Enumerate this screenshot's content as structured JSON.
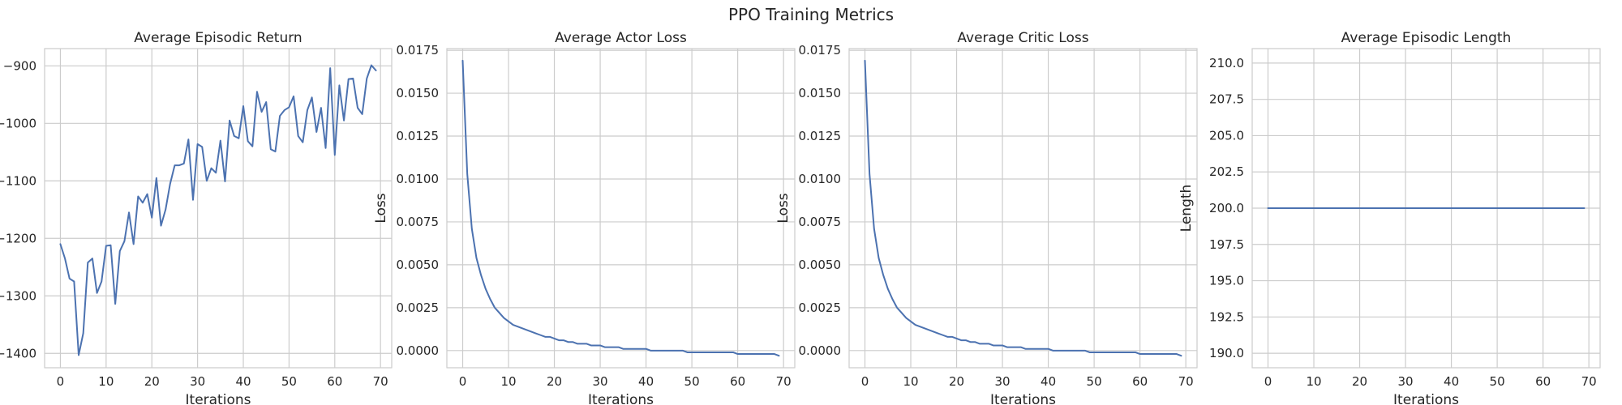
{
  "figure": {
    "suptitle": "PPO Training Metrics",
    "line_color": "#4c72b0",
    "grid_color": "#cccccc",
    "text_color": "#262626"
  },
  "chart_data": [
    {
      "type": "line",
      "title": "Average Episodic Return",
      "xlabel": "Iterations",
      "ylabel": "",
      "xlim": [
        -3.45,
        72.45
      ],
      "ylim": [
        -1425,
        -870
      ],
      "xticks": [
        0,
        10,
        20,
        30,
        40,
        50,
        60,
        70
      ],
      "yticks": [
        -1400,
        -1300,
        -1200,
        -1100,
        -1000,
        -900
      ],
      "grid": true,
      "x": [
        0,
        1,
        2,
        3,
        4,
        5,
        6,
        7,
        8,
        9,
        10,
        11,
        12,
        13,
        14,
        15,
        16,
        17,
        18,
        19,
        20,
        21,
        22,
        23,
        24,
        25,
        26,
        27,
        28,
        29,
        30,
        31,
        32,
        33,
        34,
        35,
        36,
        37,
        38,
        39,
        40,
        41,
        42,
        43,
        44,
        45,
        46,
        47,
        48,
        49,
        50,
        51,
        52,
        53,
        54,
        55,
        56,
        57,
        58,
        59,
        60,
        61,
        62,
        63,
        64,
        65,
        66,
        67,
        68,
        69
      ],
      "series": [
        {
          "values": [
            -1210,
            -1235,
            -1270,
            -1275,
            -1403,
            -1365,
            -1242,
            -1235,
            -1295,
            -1275,
            -1213,
            -1212,
            -1314,
            -1222,
            -1205,
            -1155,
            -1210,
            -1127,
            -1138,
            -1123,
            -1164,
            -1095,
            -1178,
            -1150,
            -1105,
            -1073,
            -1073,
            -1070,
            -1028,
            -1133,
            -1036,
            -1041,
            -1100,
            -1078,
            -1086,
            -1030,
            -1101,
            -995,
            -1022,
            -1026,
            -970,
            -1031,
            -1040,
            -945,
            -980,
            -963,
            -1045,
            -1049,
            -987,
            -977,
            -972,
            -953,
            -1022,
            -1033,
            -977,
            -955,
            -1015,
            -973,
            -1043,
            -904,
            -1055,
            -934,
            -995,
            -923,
            -922,
            -973,
            -984,
            -922,
            -899,
            -908
          ]
        }
      ]
    },
    {
      "type": "line",
      "title": "Average Actor Loss",
      "xlabel": "Iterations",
      "ylabel": "Loss",
      "xlim": [
        -3.45,
        72.45
      ],
      "ylim": [
        -0.001,
        0.0176
      ],
      "xticks": [
        0,
        10,
        20,
        30,
        40,
        50,
        60,
        70
      ],
      "yticks": [
        0.0,
        0.0025,
        0.005,
        0.0075,
        0.01,
        0.0125,
        0.015,
        0.0175
      ],
      "grid": true,
      "x": [
        0,
        1,
        2,
        3,
        4,
        5,
        6,
        7,
        8,
        9,
        10,
        11,
        12,
        13,
        14,
        15,
        16,
        17,
        18,
        19,
        20,
        21,
        22,
        23,
        24,
        25,
        26,
        27,
        28,
        29,
        30,
        31,
        32,
        33,
        34,
        35,
        36,
        37,
        38,
        39,
        40,
        41,
        42,
        43,
        44,
        45,
        46,
        47,
        48,
        49,
        50,
        51,
        52,
        53,
        54,
        55,
        56,
        57,
        58,
        59,
        60,
        61,
        62,
        63,
        64,
        65,
        66,
        67,
        68,
        69
      ],
      "series": [
        {
          "values": [
            0.0169,
            0.0103,
            0.0071,
            0.0054,
            0.0044,
            0.0036,
            0.003,
            0.0025,
            0.0022,
            0.0019,
            0.0017,
            0.0015,
            0.0014,
            0.0013,
            0.0012,
            0.0011,
            0.001,
            0.0009,
            0.0008,
            0.0008,
            0.0007,
            0.0006,
            0.0006,
            0.0005,
            0.0005,
            0.0004,
            0.0004,
            0.0004,
            0.0003,
            0.0003,
            0.0003,
            0.0002,
            0.0002,
            0.0002,
            0.0002,
            0.0001,
            0.0001,
            0.0001,
            0.0001,
            0.0001,
            0.0001,
            0.0,
            0.0,
            0.0,
            0.0,
            0.0,
            -0.0,
            -0.0,
            -0.0,
            -0.0001,
            -0.0001,
            -0.0001,
            -0.0001,
            -0.0001,
            -0.0001,
            -0.0001,
            -0.0001,
            -0.0001,
            -0.0001,
            -0.0001,
            -0.0002,
            -0.0002,
            -0.0002,
            -0.0002,
            -0.0002,
            -0.0002,
            -0.0002,
            -0.0002,
            -0.0002,
            -0.0003
          ]
        }
      ]
    },
    {
      "type": "line",
      "title": "Average Critic Loss",
      "xlabel": "Iterations",
      "ylabel": "Loss",
      "xlim": [
        -3.45,
        72.45
      ],
      "ylim": [
        -0.001,
        0.0176
      ],
      "xticks": [
        0,
        10,
        20,
        30,
        40,
        50,
        60,
        70
      ],
      "yticks": [
        0.0,
        0.0025,
        0.005,
        0.0075,
        0.01,
        0.0125,
        0.015,
        0.0175
      ],
      "grid": true,
      "x": [
        0,
        1,
        2,
        3,
        4,
        5,
        6,
        7,
        8,
        9,
        10,
        11,
        12,
        13,
        14,
        15,
        16,
        17,
        18,
        19,
        20,
        21,
        22,
        23,
        24,
        25,
        26,
        27,
        28,
        29,
        30,
        31,
        32,
        33,
        34,
        35,
        36,
        37,
        38,
        39,
        40,
        41,
        42,
        43,
        44,
        45,
        46,
        47,
        48,
        49,
        50,
        51,
        52,
        53,
        54,
        55,
        56,
        57,
        58,
        59,
        60,
        61,
        62,
        63,
        64,
        65,
        66,
        67,
        68,
        69
      ],
      "series": [
        {
          "values": [
            0.0169,
            0.0103,
            0.0071,
            0.0054,
            0.0044,
            0.0036,
            0.003,
            0.0025,
            0.0022,
            0.0019,
            0.0017,
            0.0015,
            0.0014,
            0.0013,
            0.0012,
            0.0011,
            0.001,
            0.0009,
            0.0008,
            0.0008,
            0.0007,
            0.0006,
            0.0006,
            0.0005,
            0.0005,
            0.0004,
            0.0004,
            0.0004,
            0.0003,
            0.0003,
            0.0003,
            0.0002,
            0.0002,
            0.0002,
            0.0002,
            0.0001,
            0.0001,
            0.0001,
            0.0001,
            0.0001,
            0.0001,
            0.0,
            0.0,
            0.0,
            0.0,
            0.0,
            -0.0,
            -0.0,
            -0.0,
            -0.0001,
            -0.0001,
            -0.0001,
            -0.0001,
            -0.0001,
            -0.0001,
            -0.0001,
            -0.0001,
            -0.0001,
            -0.0001,
            -0.0001,
            -0.0002,
            -0.0002,
            -0.0002,
            -0.0002,
            -0.0002,
            -0.0002,
            -0.0002,
            -0.0002,
            -0.0002,
            -0.0003
          ]
        }
      ]
    },
    {
      "type": "line",
      "title": "Average Episodic Length",
      "xlabel": "Iterations",
      "ylabel": "Length",
      "xlim": [
        -3.45,
        72.45
      ],
      "ylim": [
        189,
        211
      ],
      "xticks": [
        0,
        10,
        20,
        30,
        40,
        50,
        60,
        70
      ],
      "yticks": [
        190.0,
        192.5,
        195.0,
        197.5,
        200.0,
        202.5,
        205.0,
        207.5,
        210.0
      ],
      "grid": true,
      "x": [
        0,
        1,
        2,
        3,
        4,
        5,
        6,
        7,
        8,
        9,
        10,
        11,
        12,
        13,
        14,
        15,
        16,
        17,
        18,
        19,
        20,
        21,
        22,
        23,
        24,
        25,
        26,
        27,
        28,
        29,
        30,
        31,
        32,
        33,
        34,
        35,
        36,
        37,
        38,
        39,
        40,
        41,
        42,
        43,
        44,
        45,
        46,
        47,
        48,
        49,
        50,
        51,
        52,
        53,
        54,
        55,
        56,
        57,
        58,
        59,
        60,
        61,
        62,
        63,
        64,
        65,
        66,
        67,
        68,
        69
      ],
      "series": [
        {
          "values": [
            200,
            200,
            200,
            200,
            200,
            200,
            200,
            200,
            200,
            200,
            200,
            200,
            200,
            200,
            200,
            200,
            200,
            200,
            200,
            200,
            200,
            200,
            200,
            200,
            200,
            200,
            200,
            200,
            200,
            200,
            200,
            200,
            200,
            200,
            200,
            200,
            200,
            200,
            200,
            200,
            200,
            200,
            200,
            200,
            200,
            200,
            200,
            200,
            200,
            200,
            200,
            200,
            200,
            200,
            200,
            200,
            200,
            200,
            200,
            200,
            200,
            200,
            200,
            200,
            200,
            200,
            200,
            200,
            200,
            200
          ]
        }
      ]
    }
  ]
}
